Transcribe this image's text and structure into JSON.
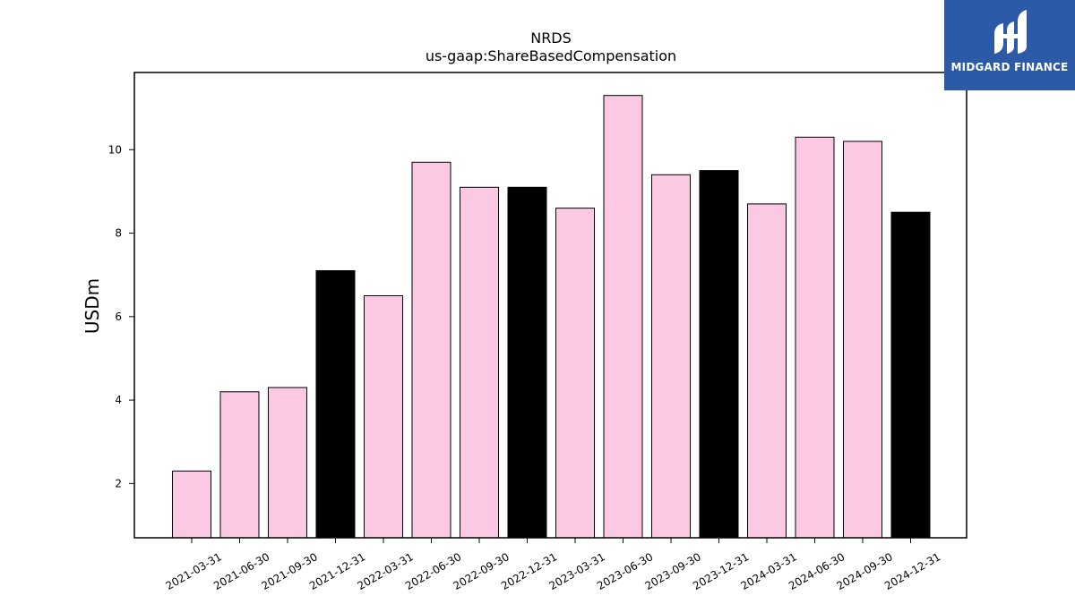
{
  "chart_data": {
    "type": "bar",
    "title": "NRDS",
    "subtitle": "us-gaap:ShareBasedCompensation",
    "xlabel": "",
    "ylabel": "USDm",
    "ylim": [
      0.7,
      11.85
    ],
    "yticks": [
      2,
      4,
      6,
      8,
      10
    ],
    "grid": false,
    "categories": [
      "2021-03-31",
      "2021-06-30",
      "2021-09-30",
      "2021-12-31",
      "2022-03-31",
      "2022-06-30",
      "2022-09-30",
      "2022-12-31",
      "2023-03-31",
      "2023-06-30",
      "2023-09-30",
      "2023-12-31",
      "2024-03-31",
      "2024-06-30",
      "2024-09-30",
      "2024-12-31"
    ],
    "values": [
      2.3,
      4.2,
      4.3,
      7.1,
      6.5,
      9.7,
      9.1,
      9.1,
      8.6,
      11.3,
      9.4,
      9.5,
      8.7,
      10.3,
      10.2,
      8.5
    ],
    "bar_colors": [
      "#fbc9e4",
      "#fbc9e4",
      "#fbc9e4",
      "#000000",
      "#fbc9e4",
      "#fbc9e4",
      "#fbc9e4",
      "#000000",
      "#fbc9e4",
      "#fbc9e4",
      "#fbc9e4",
      "#000000",
      "#fbc9e4",
      "#fbc9e4",
      "#fbc9e4",
      "#000000"
    ],
    "edge_color": "#000000"
  },
  "logo": {
    "text": "MIDGARD FINANCE",
    "background": "#2d5aa6",
    "icon": "midgard-logo-icon"
  }
}
